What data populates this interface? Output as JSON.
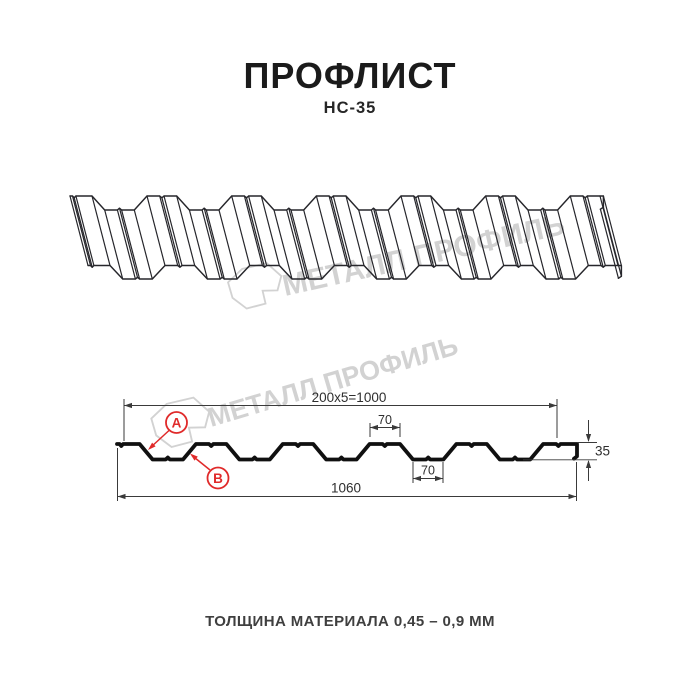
{
  "header": {
    "title": "ПРОФЛИСТ",
    "model": "НС-35"
  },
  "watermark": {
    "text": "МЕТАЛЛ ПРОФИЛЬ"
  },
  "cross_section": {
    "dim_coverage": "200х5=1000",
    "dim_crest_width": "70",
    "dim_valley_width": "70",
    "dim_height": "35",
    "dim_overall_width": "1060",
    "marker_a": "A",
    "marker_b": "B"
  },
  "footer": {
    "thickness_note": "ТОЛЩИНА МАТЕРИАЛА 0,45 – 0,9 ММ"
  },
  "colors": {
    "accent_red": "#e02a2a",
    "line": "#26262b",
    "profile": "#101010",
    "dim": "#3a3a3a",
    "watermark": "#d2d2d2"
  }
}
